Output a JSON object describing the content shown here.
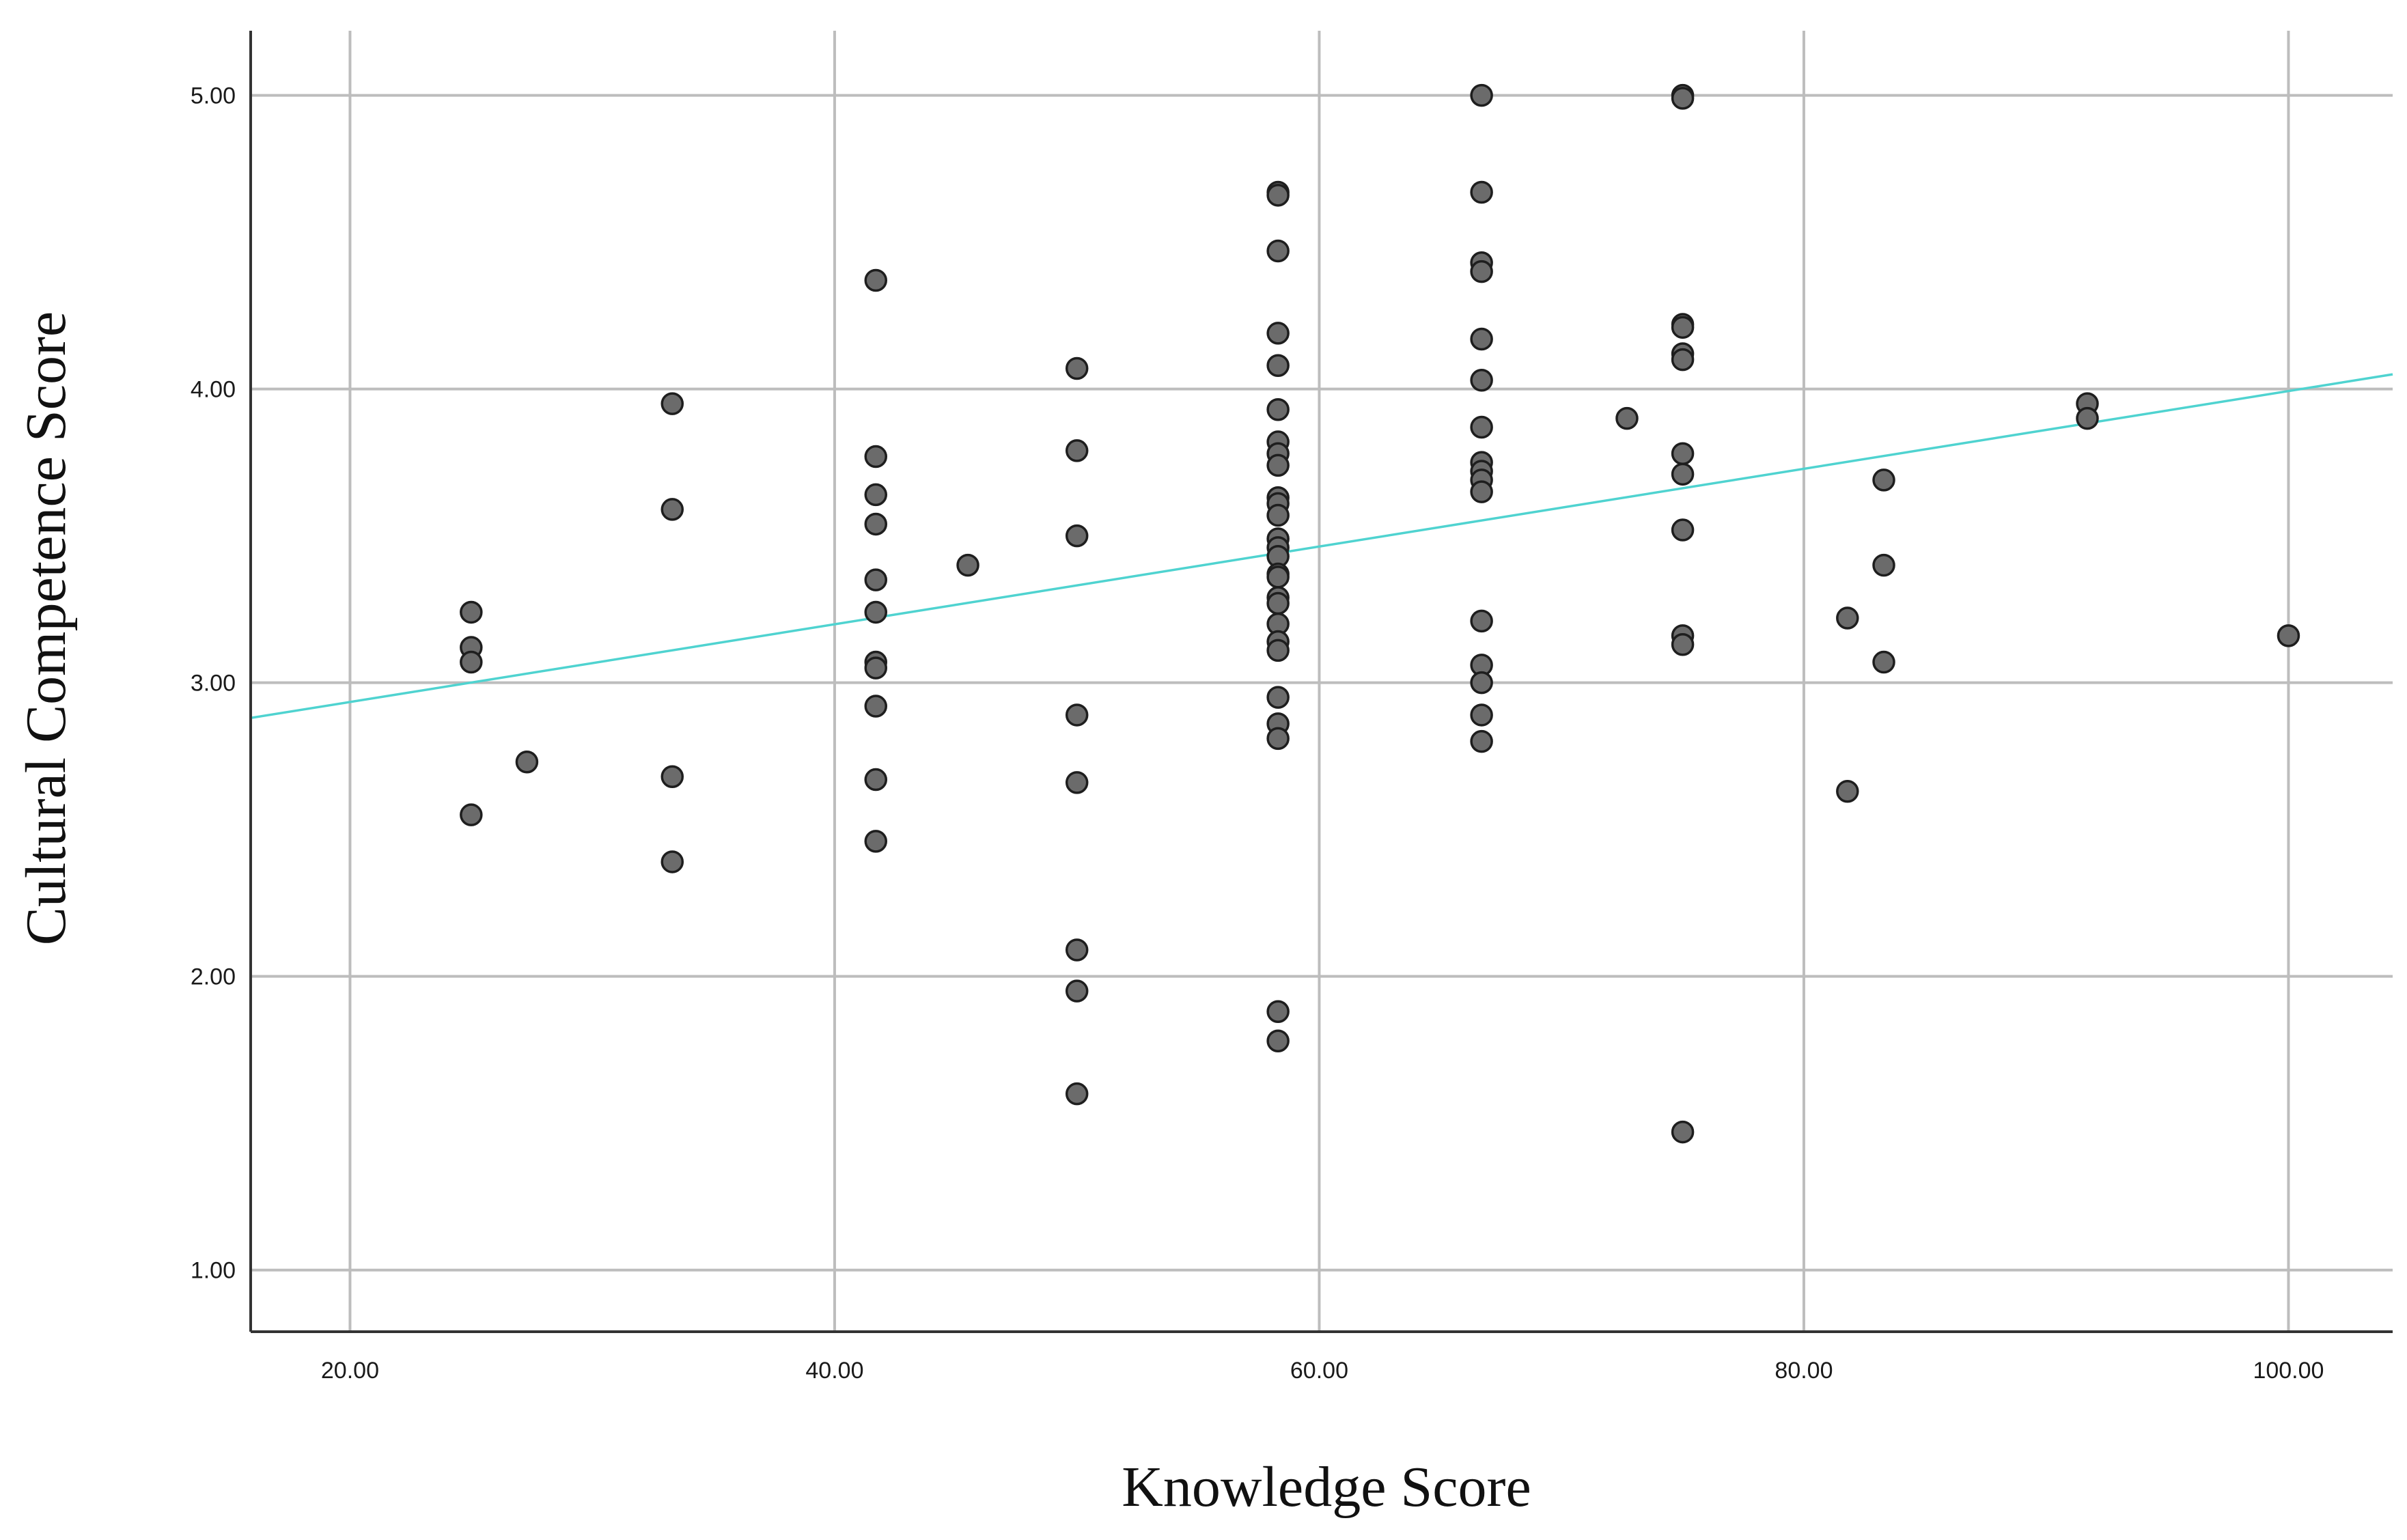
{
  "chart_data": {
    "type": "scatter",
    "title": "",
    "xlabel": "Knowledge Score",
    "ylabel": "Cultural Competence Score",
    "xlim": [
      15.9,
      104.3
    ],
    "ylim": [
      0.79,
      5.22
    ],
    "xticks": [
      20,
      40,
      60,
      80,
      100
    ],
    "yticks": [
      1,
      2,
      3,
      4,
      5
    ],
    "xtick_labels": [
      "20.00",
      "40.00",
      "60.00",
      "80.00",
      "100.00"
    ],
    "ytick_labels": [
      "1.00",
      "2.00",
      "3.00",
      "4.00",
      "5.00"
    ],
    "grid": true,
    "legend": "none",
    "colors": {
      "points": "#6b6b6b",
      "point_edge": "#1e1e1e",
      "fit_line": "#4fd3d0",
      "grid": "#bdbdbd"
    },
    "fit_line": {
      "x": [
        15.9,
        104.3
      ],
      "y": [
        2.88,
        4.05
      ]
    },
    "points": [
      [
        25,
        3.24
      ],
      [
        25,
        3.12
      ],
      [
        25,
        3.07
      ],
      [
        25,
        2.55
      ],
      [
        27.3,
        2.73
      ],
      [
        33.3,
        3.95
      ],
      [
        33.3,
        3.59
      ],
      [
        33.3,
        2.68
      ],
      [
        33.3,
        2.39
      ],
      [
        41.7,
        4.37
      ],
      [
        41.7,
        3.77
      ],
      [
        41.7,
        3.64
      ],
      [
        41.7,
        3.54
      ],
      [
        41.7,
        3.35
      ],
      [
        41.7,
        3.24
      ],
      [
        41.7,
        3.07
      ],
      [
        41.7,
        3.05
      ],
      [
        41.7,
        2.92
      ],
      [
        41.7,
        2.67
      ],
      [
        41.7,
        2.46
      ],
      [
        45.5,
        3.4
      ],
      [
        50,
        4.07
      ],
      [
        50,
        3.79
      ],
      [
        50,
        3.5
      ],
      [
        50,
        2.89
      ],
      [
        50,
        2.66
      ],
      [
        50,
        2.09
      ],
      [
        50,
        1.95
      ],
      [
        50,
        1.6
      ],
      [
        58.3,
        4.67
      ],
      [
        58.3,
        4.66
      ],
      [
        58.3,
        4.47
      ],
      [
        58.3,
        4.19
      ],
      [
        58.3,
        4.08
      ],
      [
        58.3,
        3.93
      ],
      [
        58.3,
        3.82
      ],
      [
        58.3,
        3.78
      ],
      [
        58.3,
        3.74
      ],
      [
        58.3,
        3.63
      ],
      [
        58.3,
        3.61
      ],
      [
        58.3,
        3.57
      ],
      [
        58.3,
        3.49
      ],
      [
        58.3,
        3.46
      ],
      [
        58.3,
        3.43
      ],
      [
        58.3,
        3.37
      ],
      [
        58.3,
        3.36
      ],
      [
        58.3,
        3.29
      ],
      [
        58.3,
        3.27
      ],
      [
        58.3,
        3.2
      ],
      [
        58.3,
        3.14
      ],
      [
        58.3,
        3.11
      ],
      [
        58.3,
        2.95
      ],
      [
        58.3,
        2.86
      ],
      [
        58.3,
        2.81
      ],
      [
        58.3,
        1.88
      ],
      [
        58.3,
        1.78
      ],
      [
        66.7,
        5.0
      ],
      [
        66.7,
        4.67
      ],
      [
        66.7,
        4.43
      ],
      [
        66.7,
        4.4
      ],
      [
        66.7,
        4.17
      ],
      [
        66.7,
        4.03
      ],
      [
        66.7,
        3.87
      ],
      [
        66.7,
        3.75
      ],
      [
        66.7,
        3.72
      ],
      [
        66.7,
        3.69
      ],
      [
        66.7,
        3.65
      ],
      [
        66.7,
        3.21
      ],
      [
        66.7,
        3.06
      ],
      [
        66.7,
        3.0
      ],
      [
        66.7,
        2.89
      ],
      [
        66.7,
        2.8
      ],
      [
        72.7,
        3.9
      ],
      [
        75,
        5.0
      ],
      [
        75,
        4.99
      ],
      [
        75,
        4.22
      ],
      [
        75,
        4.21
      ],
      [
        75,
        4.12
      ],
      [
        75,
        4.1
      ],
      [
        75,
        3.78
      ],
      [
        75,
        3.71
      ],
      [
        75,
        3.52
      ],
      [
        75,
        3.16
      ],
      [
        75,
        3.13
      ],
      [
        75,
        1.47
      ],
      [
        81.8,
        3.22
      ],
      [
        81.8,
        2.63
      ],
      [
        83.3,
        3.69
      ],
      [
        83.3,
        3.4
      ],
      [
        83.3,
        3.07
      ],
      [
        91.7,
        3.95
      ],
      [
        91.7,
        3.9
      ],
      [
        100,
        3.16
      ]
    ]
  }
}
